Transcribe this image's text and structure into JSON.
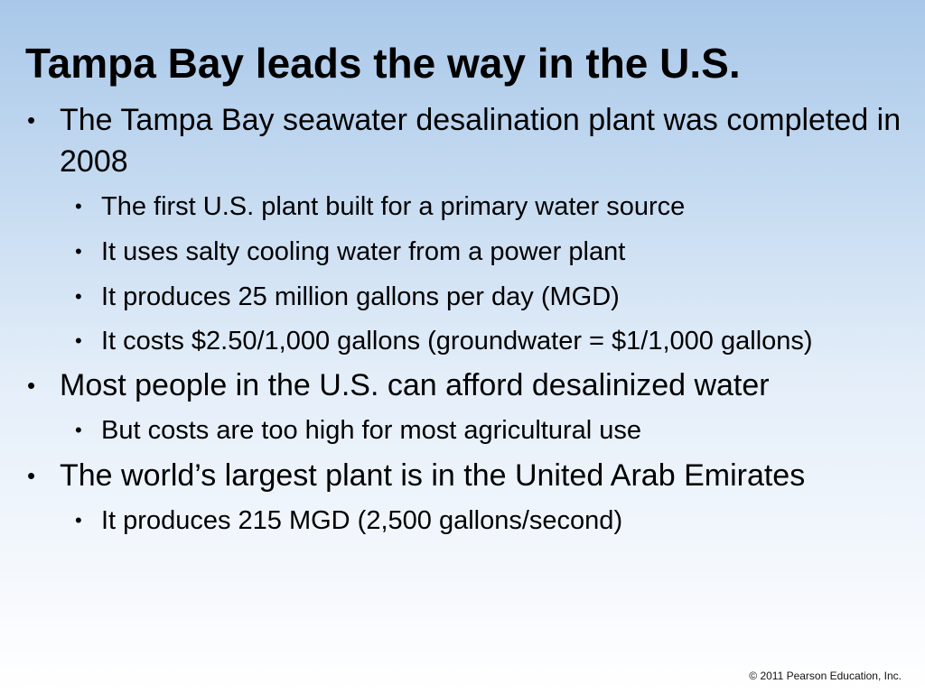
{
  "slide": {
    "title": "Tampa Bay leads the way in the U.S.",
    "bullet_glyph": "•",
    "bullets": [
      {
        "text": "The Tampa Bay seawater desalination plant was completed in 2008",
        "sub": [
          "The first U.S. plant built for a primary water source",
          "It uses salty cooling water from a power plant",
          "It produces 25 million gallons per day (MGD)",
          "It costs $2.50/1,000 gallons (groundwater = $1/1,000 gallons)"
        ]
      },
      {
        "text": "Most people in the U.S. can afford desalinized water",
        "sub": [
          "But costs are too high for most agricultural use"
        ]
      },
      {
        "text": "The world’s largest plant is in the United Arab Emirates",
        "sub": [
          "It produces 215 MGD (2,500 gallons/second)"
        ]
      }
    ],
    "copyright": "© 2011 Pearson Education, Inc."
  }
}
